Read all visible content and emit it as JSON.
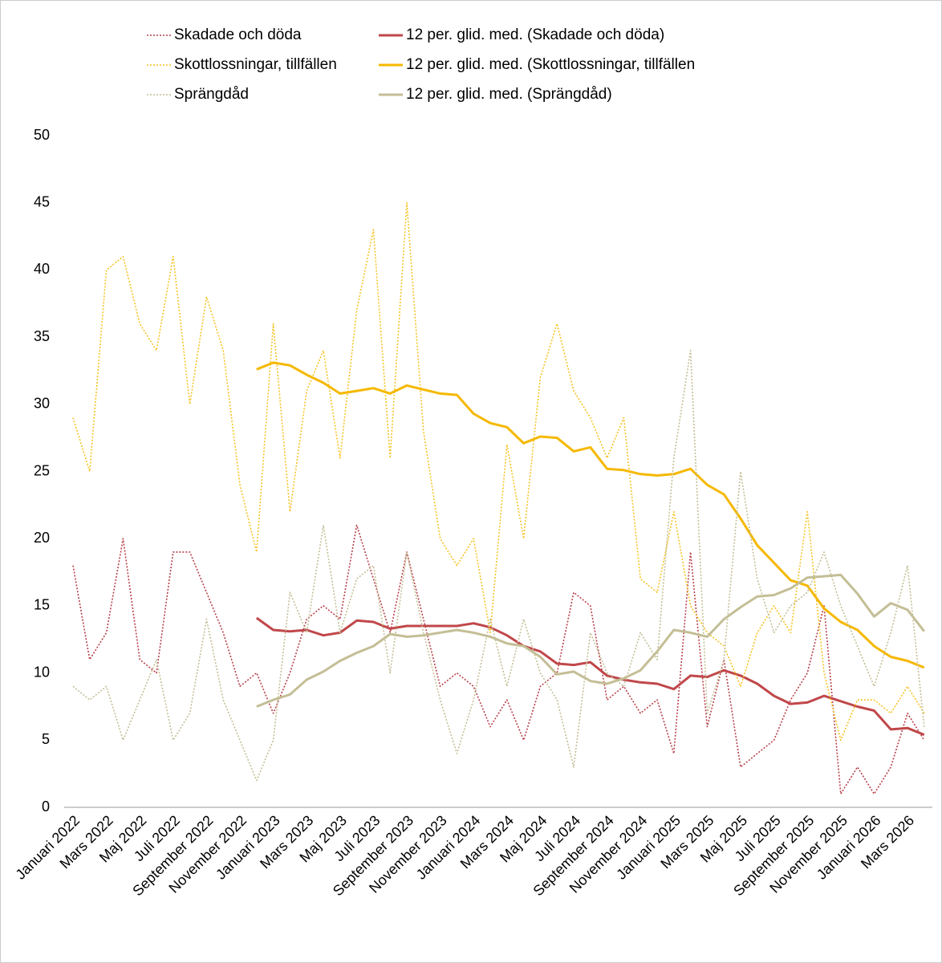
{
  "chart_data": {
    "type": "line",
    "categories": [
      "Januari 2022",
      null,
      "Mars 2022",
      null,
      "Maj 2022",
      null,
      "Juli 2022",
      null,
      "September 2022",
      null,
      "November 2022",
      null,
      "Januari 2023",
      null,
      "Mars 2023",
      null,
      "Maj 2023",
      null,
      "Juli 2023",
      null,
      "September 2023",
      null,
      "November 2023",
      null,
      "Januari 2024",
      null,
      "Mars 2024",
      null,
      "Maj 2024",
      null,
      "Juli 2024",
      null,
      "September 2024",
      null,
      "November 2024",
      null,
      "Januari 2025",
      null,
      "Mars 2025",
      null,
      "Maj 2025",
      null,
      "Juli 2025",
      null,
      "September 2025",
      null,
      "November 2025",
      null,
      "Januari 2026",
      null,
      "Mars 2026",
      null
    ],
    "ylim": [
      0,
      50
    ],
    "yticks": [
      0,
      5,
      10,
      15,
      20,
      25,
      30,
      35,
      40,
      45,
      50
    ],
    "grid": false,
    "series": [
      {
        "name": "Skadade och döda",
        "color": "#b8404a",
        "style": "dotted",
        "values": [
          18,
          11,
          13,
          20,
          11,
          10,
          19,
          19,
          16,
          13,
          9,
          10,
          7,
          10,
          14,
          15,
          14,
          21,
          17,
          13,
          19,
          14,
          9,
          10,
          9,
          6,
          8,
          5,
          9,
          10,
          16,
          15,
          8,
          9,
          7,
          8,
          4,
          19,
          6,
          11,
          3,
          4,
          5,
          8,
          10,
          15,
          1,
          3,
          1,
          3,
          7,
          5
        ]
      },
      {
        "name": "12 per. glid. med. (Skadade och döda)",
        "color": "#c0474a",
        "style": "solid",
        "values": [
          null,
          null,
          null,
          null,
          null,
          null,
          null,
          null,
          null,
          null,
          null,
          14.1,
          13.2,
          13.1,
          13.2,
          12.8,
          13.0,
          13.9,
          13.8,
          13.3,
          13.5,
          13.5,
          13.5,
          13.5,
          13.7,
          13.4,
          12.8,
          12.0,
          11.6,
          10.7,
          10.6,
          10.8,
          9.8,
          9.5,
          9.3,
          9.2,
          8.8,
          9.8,
          9.7,
          10.2,
          9.8,
          9.2,
          8.3,
          7.7,
          7.8,
          8.3,
          7.9,
          7.5,
          7.2,
          5.8,
          5.9,
          5.4
        ]
      },
      {
        "name": "Skottlossningar, tillfällen",
        "color": "#f7c325",
        "style": "dotted",
        "values": [
          29,
          25,
          40,
          41,
          36,
          34,
          41,
          30,
          38,
          34,
          24,
          19,
          36,
          22,
          31,
          34,
          26,
          37,
          43,
          26,
          45,
          28,
          20,
          18,
          20,
          13,
          27,
          20,
          32,
          36,
          31,
          29,
          26,
          29,
          17,
          16,
          22,
          15,
          13,
          12,
          9,
          13,
          15,
          13,
          22,
          10,
          5,
          8,
          8,
          7,
          9,
          7
        ]
      },
      {
        "name": "12 per. glid. med. (Skottlossningar, tillfällen",
        "color": "#f5b800",
        "style": "solid",
        "values": [
          null,
          null,
          null,
          null,
          null,
          null,
          null,
          null,
          null,
          null,
          null,
          32.6,
          33.1,
          32.9,
          32.2,
          31.6,
          30.8,
          31.0,
          31.2,
          30.8,
          31.4,
          31.1,
          30.8,
          30.7,
          29.3,
          28.6,
          28.3,
          27.1,
          27.6,
          27.5,
          26.5,
          26.8,
          25.2,
          25.1,
          24.8,
          24.7,
          24.8,
          25.2,
          24.0,
          23.3,
          21.5,
          19.5,
          18.2,
          16.9,
          16.5,
          14.8,
          13.8,
          13.2,
          12.0,
          11.2,
          10.9,
          10.4
        ]
      },
      {
        "name": "Sprängdåd",
        "color": "#c4be96",
        "style": "dotted",
        "values": [
          9,
          8,
          9,
          5,
          8,
          11,
          5,
          7,
          14,
          8,
          5,
          2,
          5,
          16,
          13,
          21,
          13,
          17,
          18,
          10,
          19,
          13,
          8,
          4,
          8,
          14,
          9,
          14,
          10,
          8,
          3,
          13,
          10,
          9,
          13,
          11,
          26,
          34,
          7,
          11,
          25,
          17,
          13,
          15,
          16,
          19,
          15,
          12,
          9,
          13,
          18,
          6
        ]
      },
      {
        "name": "12 per. glid. med. (Sprängdåd)",
        "color": "#c4be96",
        "style": "solid",
        "values": [
          null,
          null,
          null,
          null,
          null,
          null,
          null,
          null,
          null,
          null,
          null,
          7.5,
          8.0,
          8.4,
          9.5,
          10.1,
          10.9,
          11.5,
          12.0,
          12.9,
          12.7,
          12.8,
          13.0,
          13.2,
          13.0,
          12.7,
          12.2,
          12.0,
          11.2,
          9.9,
          10.1,
          9.4,
          9.2,
          9.6,
          10.2,
          11.6,
          13.2,
          13.0,
          12.7,
          14.0,
          14.9,
          15.7,
          15.8,
          16.3,
          17.1,
          17.2,
          17.3,
          15.9,
          14.2,
          15.2,
          14.7,
          13.1
        ]
      }
    ]
  }
}
